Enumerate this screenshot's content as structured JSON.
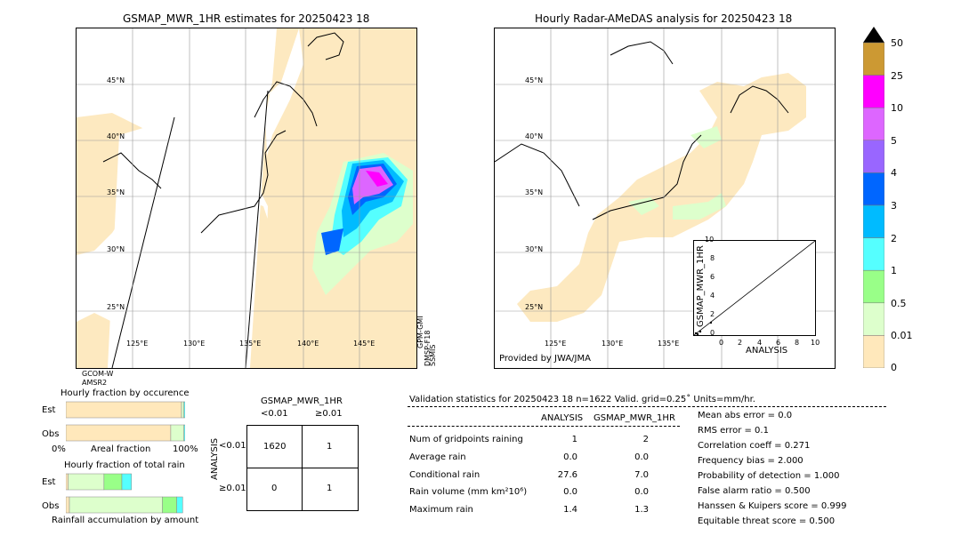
{
  "left_panel": {
    "title": "GSMAP_MWR_1HR estimates for 20250423 18",
    "lat_labels": [
      "45°N",
      "40°N",
      "35°N",
      "30°N",
      "25°N"
    ],
    "lon_labels": [
      "125°E",
      "130°E",
      "135°E",
      "140°E",
      "145°E"
    ],
    "satellite_label_1": "GCOM-W",
    "satellite_label_2": "AMSR2",
    "side_label_1": "GPM-GMI",
    "side_label_2": "DMSP-F18",
    "side_label_3": "SSMIS"
  },
  "right_panel": {
    "title": "Hourly Radar-AMeDAS analysis for 20250423 18",
    "lat_labels": [
      "45°N",
      "40°N",
      "35°N",
      "30°N",
      "25°N"
    ],
    "lon_labels": [
      "125°E",
      "130°E",
      "135°E"
    ],
    "credit": "Provided by JWA/JMA"
  },
  "inset_scatter": {
    "xlabel": "ANALYSIS",
    "ylabel": "GSMAP_MWR_1HR",
    "ticks": [
      "0",
      "2",
      "4",
      "6",
      "8",
      "10"
    ]
  },
  "colorbar": {
    "labels": [
      "50",
      "25",
      "10",
      "5",
      "4",
      "3",
      "2",
      "1",
      "0.5",
      "0.01",
      "0"
    ],
    "colors": [
      "#cc9933",
      "#ff00ff",
      "#dd66ff",
      "#9966ff",
      "#0066ff",
      "#00bbff",
      "#55ffff",
      "#99ff88",
      "#ddffcc",
      "#ffe8bb"
    ]
  },
  "occurrence": {
    "title": "Hourly fraction by occurence",
    "row_labels": [
      "Est",
      "Obs"
    ],
    "axis_left": "0%",
    "axis_mid": "Areal fraction",
    "axis_right": "100%"
  },
  "total_rain": {
    "title": "Hourly fraction of total rain",
    "row_labels": [
      "Est",
      "Obs"
    ],
    "footer": "Rainfall accumulation by amount"
  },
  "contingency": {
    "title": "GSMAP_MWR_1HR",
    "col_labels": [
      "<0.01",
      "≥0.01"
    ],
    "row_labels": [
      "<0.01",
      "≥0.01"
    ],
    "side_label": "ANALYSIS",
    "cells": [
      "1620",
      "1",
      "0",
      "1"
    ]
  },
  "validation": {
    "header": "Validation statistics for 20250423 18  n=1622 Valid. grid=0.25˚ Units=mm/hr.",
    "col_analysis": "ANALYSIS",
    "col_gsmap": "GSMAP_MWR_1HR",
    "rows": [
      {
        "label": "Num of gridpoints raining",
        "analysis": "1",
        "gsmap": "2"
      },
      {
        "label": "Average rain",
        "analysis": "0.0",
        "gsmap": "0.0"
      },
      {
        "label": "Conditional rain",
        "analysis": "27.6",
        "gsmap": "7.0"
      },
      {
        "label": "Rain volume (mm km²10⁶)",
        "analysis": "0.0",
        "gsmap": "0.0"
      },
      {
        "label": "Maximum rain",
        "analysis": "1.4",
        "gsmap": "1.3"
      }
    ],
    "scores": [
      "Mean abs error =    0.0",
      "RMS error =    0.1",
      "Correlation coeff =  0.271",
      "Frequency bias =  2.000",
      "Probability of detection =  1.000",
      "False alarm ratio =  0.500",
      "Hanssen & Kuipers score =  0.999",
      "Equitable threat score =  0.500"
    ]
  },
  "chart_data": [
    {
      "type": "bar",
      "title": "Hourly fraction by occurence",
      "categories": [
        "Est",
        "Obs"
      ],
      "series": [
        {
          "values": [
            0.97,
            0.88
          ]
        },
        {
          "values": [
            0.02,
            0.11
          ]
        },
        {
          "values": [
            0.01,
            0.01
          ]
        }
      ],
      "xlim": [
        0,
        1
      ]
    },
    {
      "type": "bar",
      "title": "Hourly fraction of total rain",
      "categories": [
        "Est",
        "Obs"
      ],
      "series": [
        {
          "values": [
            0.02,
            0.03
          ]
        },
        {
          "values": [
            0.3,
            0.78
          ]
        },
        {
          "values": [
            0.15,
            0.12
          ]
        },
        {
          "values": [
            0.08,
            0.05
          ]
        }
      ]
    },
    {
      "type": "scatter",
      "xlabel": "ANALYSIS",
      "ylabel": "GSMAP_MWR_1HR",
      "xlim": [
        0,
        10
      ],
      "ylim": [
        0,
        10
      ],
      "points": [
        [
          0.1,
          0.2
        ],
        [
          0.3,
          0.1
        ],
        [
          0.5,
          0.4
        ],
        [
          1.4,
          1.3
        ]
      ]
    }
  ]
}
